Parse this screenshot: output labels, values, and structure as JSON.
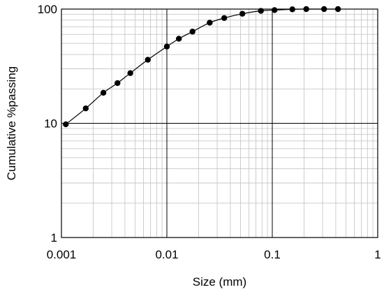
{
  "chart_data": {
    "type": "line",
    "xlabel": "Size (mm)",
    "ylabel": "Cumulative %passing",
    "x_scale": "log",
    "y_scale": "log",
    "xlim": [
      0.001,
      1
    ],
    "ylim": [
      1,
      100
    ],
    "x_ticks": [
      "0.001",
      "0.01",
      "0.1",
      "1"
    ],
    "y_ticks": [
      "1",
      "10",
      "100"
    ],
    "grid": true,
    "marker": "filled-circle",
    "line_color": "#000000",
    "series": [
      {
        "x": [
          0.0011,
          0.0017,
          0.0025,
          0.0034,
          0.0045,
          0.0066,
          0.01,
          0.013,
          0.0175,
          0.0255,
          0.035,
          0.052,
          0.078,
          0.105,
          0.155,
          0.21,
          0.31,
          0.42
        ],
        "y": [
          9.8,
          13.5,
          18.5,
          22.5,
          27.5,
          36.0,
          47.0,
          55.0,
          63.5,
          76.0,
          83.5,
          91.0,
          96.5,
          98.0,
          99.5,
          100.0,
          100.0,
          100.0
        ]
      }
    ]
  }
}
